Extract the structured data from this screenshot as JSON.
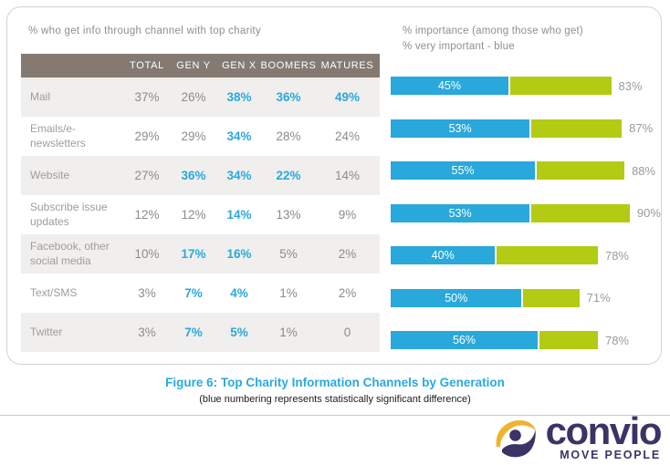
{
  "panel_left": {
    "title": "% who get info through channel with top charity"
  },
  "panel_right": {
    "title_line1": "% importance (among those who get)",
    "title_line2": "% very important - blue"
  },
  "caption": {
    "title": "Figure 6: Top Charity Information Channels by Generation",
    "subtitle": "(blue numbering represents statistically significant difference)"
  },
  "logo": {
    "brand": "convio",
    "tagline": "MOVE PEOPLE"
  },
  "colors": {
    "bar_blue": "#29a8dc",
    "bar_green": "#b3cb12",
    "header_bg": "#847a71",
    "row_alt_bg": "#f0efed",
    "text_gray": "#8e8e8c",
    "label_gray": "#9d9d99",
    "caption_blue": "#29a9e2",
    "logo_navy": "#3d3366",
    "logo_yellow": "#efb42f"
  },
  "chart_data": {
    "type": "table+stacked-bar",
    "table": {
      "title": "% who get info through channel with top charity",
      "columns": [
        "TOTAL",
        "GEN Y",
        "GEN X",
        "BOOMERS",
        "MATURES"
      ],
      "sig_note": "blue numbering represents statistically significant difference",
      "rows": [
        {
          "label": "Mail",
          "cells": [
            {
              "text": "37%",
              "sig": false
            },
            {
              "text": "26%",
              "sig": false
            },
            {
              "text": "38%",
              "sig": true
            },
            {
              "text": "36%",
              "sig": true
            },
            {
              "text": "49%",
              "sig": true
            }
          ]
        },
        {
          "label": "Emails/e-newsletters",
          "cells": [
            {
              "text": "29%",
              "sig": false
            },
            {
              "text": "29%",
              "sig": false
            },
            {
              "text": "34%",
              "sig": true
            },
            {
              "text": "28%",
              "sig": false
            },
            {
              "text": "24%",
              "sig": false
            }
          ]
        },
        {
          "label": "Website",
          "cells": [
            {
              "text": "27%",
              "sig": false
            },
            {
              "text": "36%",
              "sig": true
            },
            {
              "text": "34%",
              "sig": true
            },
            {
              "text": "22%",
              "sig": true
            },
            {
              "text": "14%",
              "sig": false
            }
          ]
        },
        {
          "label": "Subscribe issue updates",
          "cells": [
            {
              "text": "12%",
              "sig": false
            },
            {
              "text": "12%",
              "sig": false
            },
            {
              "text": "14%",
              "sig": true
            },
            {
              "text": "13%",
              "sig": false
            },
            {
              "text": "9%",
              "sig": false
            }
          ]
        },
        {
          "label": "Facebook, other social media",
          "cells": [
            {
              "text": "10%",
              "sig": false
            },
            {
              "text": "17%",
              "sig": true
            },
            {
              "text": "16%",
              "sig": true
            },
            {
              "text": "5%",
              "sig": false
            },
            {
              "text": "2%",
              "sig": false
            }
          ]
        },
        {
          "label": "Text/SMS",
          "cells": [
            {
              "text": "3%",
              "sig": false
            },
            {
              "text": "7%",
              "sig": true
            },
            {
              "text": "4%",
              "sig": true
            },
            {
              "text": "1%",
              "sig": false
            },
            {
              "text": "2%",
              "sig": false
            }
          ]
        },
        {
          "label": "Twitter",
          "cells": [
            {
              "text": "3%",
              "sig": false
            },
            {
              "text": "7%",
              "sig": true
            },
            {
              "text": "5%",
              "sig": true
            },
            {
              "text": "1%",
              "sig": false
            },
            {
              "text": "0",
              "sig": false
            }
          ]
        }
      ]
    },
    "bar_chart": {
      "type": "bar",
      "orientation": "horizontal",
      "title": "% importance (among those who get), % very important - blue",
      "categories": [
        "Mail",
        "Emails/e-newsletters",
        "Website",
        "Subscribe issue updates",
        "Facebook, other social media",
        "Text/SMS",
        "Twitter"
      ],
      "xlim": [
        0,
        100
      ],
      "legend_position": "top",
      "series": [
        {
          "name": "% very important",
          "color": "#29a8dc",
          "values": [
            45,
            53,
            55,
            53,
            40,
            50,
            56
          ]
        },
        {
          "name": "% important total (among those who get)",
          "color": "#b3cb12",
          "values": [
            83,
            87,
            88,
            90,
            78,
            71,
            78
          ]
        }
      ]
    }
  }
}
